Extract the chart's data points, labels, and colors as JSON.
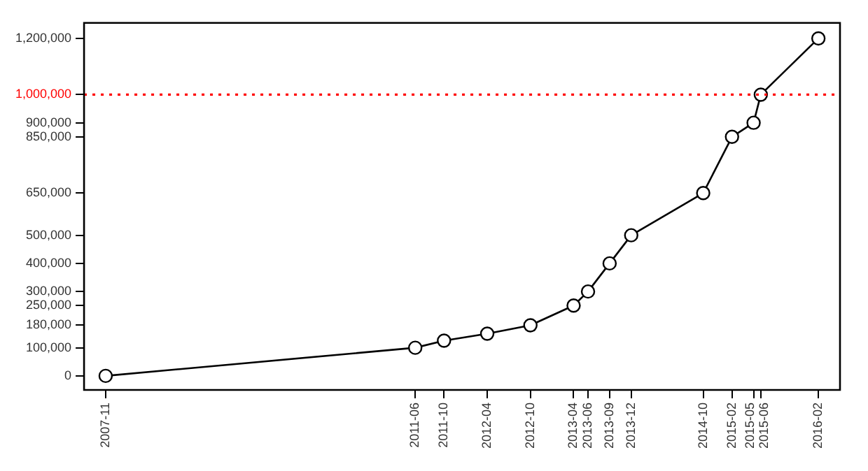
{
  "chart_data": {
    "type": "line",
    "x": [
      "2007-11",
      "2011-06",
      "2011-10",
      "2012-04",
      "2012-10",
      "2013-04",
      "2013-06",
      "2013-09",
      "2013-12",
      "2014-10",
      "2015-02",
      "2015-05",
      "2015-06",
      "2016-02"
    ],
    "values": [
      0,
      100000,
      125000,
      150000,
      180000,
      250000,
      300000,
      400000,
      500000,
      650000,
      850000,
      900000,
      1000000,
      1200000
    ],
    "color": "#000000",
    "marker": "circle",
    "line_style": "solid",
    "xlim": [
      "2007-08",
      "2016-05"
    ],
    "xticks": [
      "2007-11",
      "2011-06",
      "2011-10",
      "2012-04",
      "2012-10",
      "2013-04",
      "2013-06",
      "2013-09",
      "2013-12",
      "2014-10",
      "2015-02",
      "2015-05",
      "2015-06",
      "2016-02"
    ],
    "ylim": [
      -50000,
      1255000
    ],
    "yticks": [
      {
        "value": 0,
        "label": "0"
      },
      {
        "value": 100000,
        "label": "100,000"
      },
      {
        "value": 180000,
        "label": "180,000"
      },
      {
        "value": 250000,
        "label": "250,000"
      },
      {
        "value": 300000,
        "label": "300,000"
      },
      {
        "value": 400000,
        "label": "400,000"
      },
      {
        "value": 500000,
        "label": "500,000"
      },
      {
        "value": 650000,
        "label": "650,000"
      },
      {
        "value": 850000,
        "label": "850,000"
      },
      {
        "value": 900000,
        "label": "900,000"
      },
      {
        "value": 1000000,
        "label": "1,000,000"
      },
      {
        "value": 1200000,
        "label": "1,200,000"
      }
    ],
    "ref_lines": [
      {
        "axis": "y",
        "value": 1000000,
        "color": "#ff0000",
        "line_style": "dotted"
      }
    ]
  }
}
